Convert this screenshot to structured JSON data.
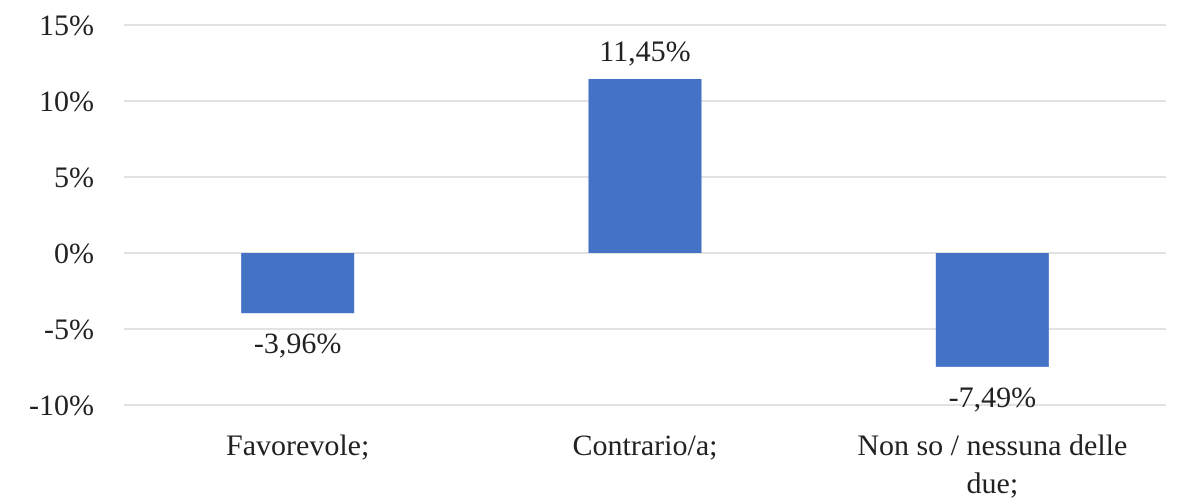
{
  "chart_data": {
    "type": "bar",
    "categories": [
      "Favorevole;",
      "Contrario/a;",
      "Non so / nessuna delle due;"
    ],
    "category_label_lines": [
      [
        "Favorevole;"
      ],
      [
        "Contrario/a;"
      ],
      [
        "Non so / nessuna delle",
        "due;"
      ]
    ],
    "values": [
      -3.96,
      11.45,
      -7.49
    ],
    "data_labels": [
      "-3,96%",
      "11,45%",
      "-7,49%"
    ],
    "ylim": [
      -10,
      15
    ],
    "yticks": [
      15,
      10,
      5,
      0,
      -5,
      -10
    ],
    "ytick_labels": [
      "15%",
      "10%",
      "5%",
      "0%",
      "-5%",
      "-10%"
    ],
    "grid": true,
    "bar_color": "#4472c4",
    "title": "",
    "xlabel": "",
    "ylabel": ""
  }
}
